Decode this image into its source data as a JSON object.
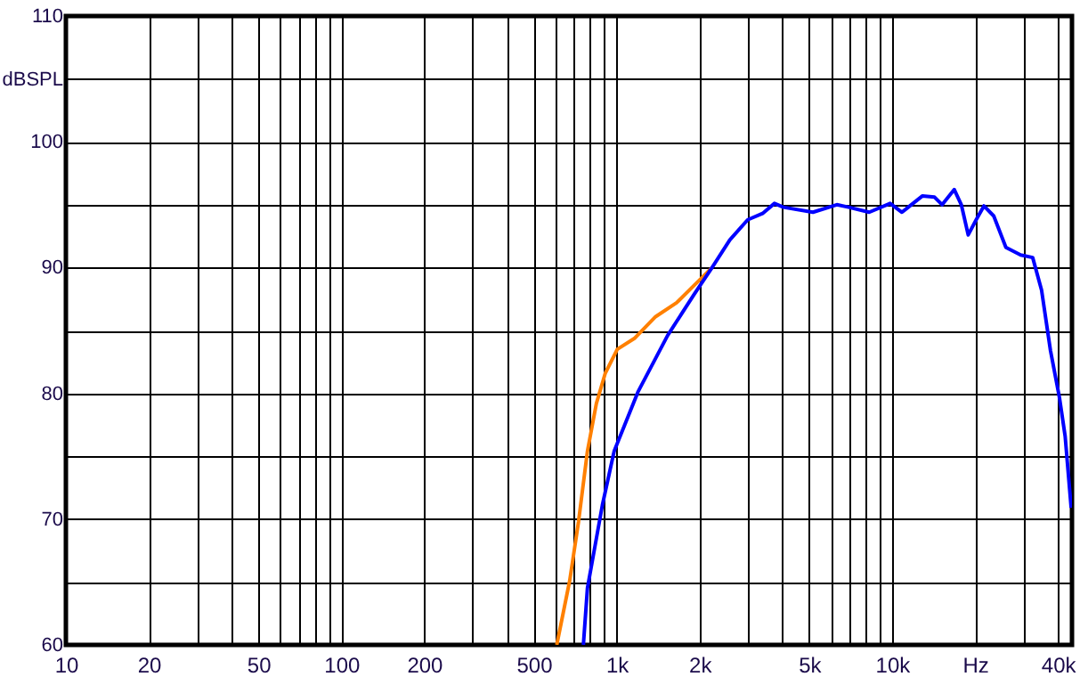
{
  "chart_data": {
    "type": "line",
    "log": "x",
    "grid": true,
    "line_style": "solid",
    "marker": "none",
    "xlim": [
      10,
      45000
    ],
    "ylim": [
      60,
      110
    ],
    "xticks": [
      10,
      {
        "value": 20,
        "label": "20"
      },
      {
        "value": 30,
        "label": null
      },
      {
        "value": 40,
        "label": null
      },
      50,
      {
        "value": 60,
        "label": null
      },
      {
        "value": 70,
        "label": null
      },
      {
        "value": 80,
        "label": null
      },
      {
        "value": 90,
        "label": null
      },
      100,
      200,
      {
        "value": 300,
        "label": null
      },
      {
        "value": 400,
        "label": null
      },
      500,
      {
        "value": 600,
        "label": null
      },
      {
        "value": 700,
        "label": null
      },
      {
        "value": 800,
        "label": null
      },
      {
        "value": 900,
        "label": null
      },
      {
        "value": 1000,
        "label": "1k"
      },
      {
        "value": 2000,
        "label": "2k"
      },
      {
        "value": 3000,
        "label": null
      },
      {
        "value": 4000,
        "label": null
      },
      {
        "value": 5000,
        "label": "5k"
      },
      {
        "value": 6000,
        "label": null
      },
      {
        "value": 7000,
        "label": null
      },
      {
        "value": 8000,
        "label": null
      },
      {
        "value": 9000,
        "label": null
      },
      {
        "value": 10000,
        "label": "10k"
      },
      {
        "value": 20000,
        "label": "Hz"
      },
      {
        "value": 30000,
        "label": null
      },
      {
        "value": 40000,
        "label": "40k"
      }
    ],
    "yticks": [
      60,
      {
        "value": 65,
        "label": null
      },
      70,
      {
        "value": 75,
        "label": null
      },
      80,
      {
        "value": 85,
        "label": null
      },
      90,
      {
        "value": 95,
        "label": null
      },
      100,
      {
        "value": 105,
        "label": "dBSPL"
      },
      110
    ],
    "series": [
      {
        "color": "#ff8000",
        "x": [
          606,
          675,
          727,
          783,
          844,
          909,
          1005,
          1165,
          1385,
          1650,
          1914,
          2220
        ],
        "values": [
          60,
          65.1,
          69.8,
          75.4,
          79.2,
          81.6,
          83.5,
          84.4,
          86.1,
          87.2,
          88.6,
          90.0
        ]
      },
      {
        "color": "#0000ff",
        "x": [
          757,
          783,
          887,
          979,
          1194,
          1531,
          1914,
          2220,
          2575,
          2990,
          3385,
          3740,
          4030,
          5160,
          6300,
          6950,
          8260,
          9840,
          10860,
          12900,
          14260,
          15200,
          16820,
          17840,
          18900,
          20200,
          21550,
          23400,
          25900,
          29300,
          32400,
          34900,
          37600,
          40500,
          42500,
          44700
        ],
        "values": [
          60,
          64.5,
          71.1,
          75.4,
          80.1,
          84.6,
          87.9,
          90.0,
          92.2,
          93.8,
          94.3,
          95.1,
          94.8,
          94.4,
          95.0,
          94.8,
          94.4,
          95.1,
          94.4,
          95.7,
          95.6,
          95.0,
          96.2,
          95.0,
          92.6,
          93.8,
          94.9,
          94.1,
          91.6,
          91.0,
          90.8,
          88.2,
          83.4,
          79.7,
          76.6,
          70.9
        ]
      }
    ]
  }
}
